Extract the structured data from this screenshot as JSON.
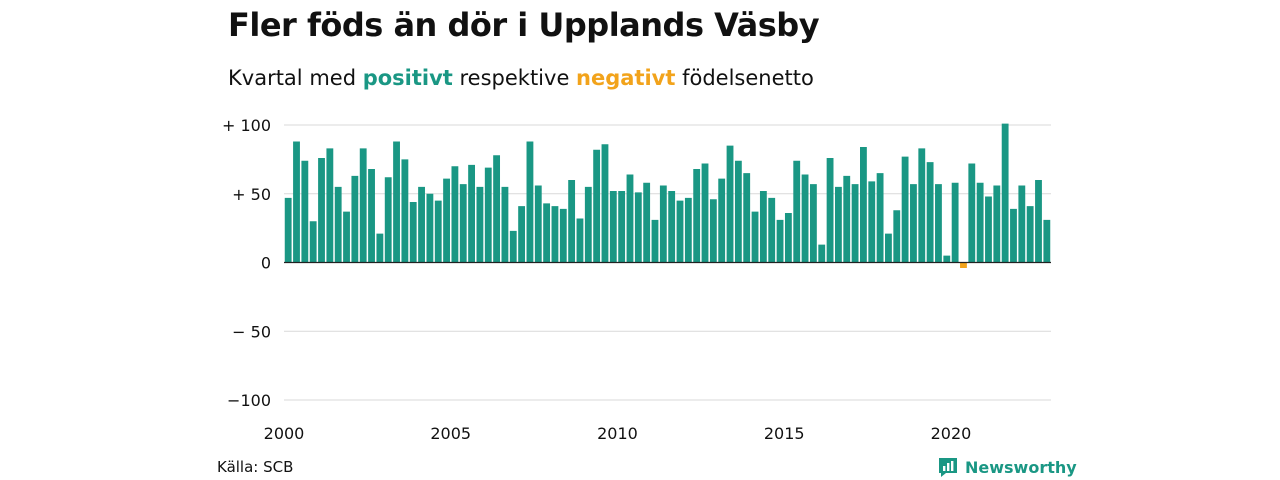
{
  "chart_data": {
    "type": "bar",
    "title": "Fler föds än dör i Upplands Väsby",
    "subtitle": {
      "prefix": "Kvartal med ",
      "positive": "positivt",
      "middle": " respektive ",
      "negative": "negativt",
      "suffix": " födelsenetto"
    },
    "xlabel": "",
    "ylabel": "",
    "ylim": [
      -100,
      100
    ],
    "yticks": [
      {
        "value": 100,
        "label": "+ 100"
      },
      {
        "value": 50,
        "label": "+  50"
      },
      {
        "value": 0,
        "label": "0"
      },
      {
        "value": -50,
        "label": "− 50"
      },
      {
        "value": -100,
        "label": "−100"
      }
    ],
    "xticks": [
      "2000",
      "2005",
      "2010",
      "2015",
      "2020"
    ],
    "x_start_year": 2000,
    "values": [
      47,
      88,
      74,
      30,
      76,
      83,
      55,
      37,
      63,
      83,
      68,
      21,
      62,
      88,
      75,
      44,
      55,
      50,
      45,
      61,
      70,
      57,
      71,
      55,
      69,
      78,
      55,
      23,
      41,
      88,
      56,
      43,
      41,
      39,
      60,
      32,
      55,
      82,
      86,
      52,
      52,
      64,
      51,
      58,
      31,
      56,
      52,
      45,
      47,
      68,
      72,
      46,
      61,
      85,
      74,
      65,
      37,
      52,
      47,
      31,
      36,
      74,
      64,
      57,
      13,
      76,
      55,
      63,
      57,
      84,
      59,
      65,
      21,
      38,
      77,
      57,
      83,
      73,
      57,
      5,
      58,
      -4,
      72,
      58,
      48,
      56,
      101,
      39,
      56,
      41,
      60,
      31
    ],
    "colors": {
      "positive": "#1a9784",
      "negative": "#f2a31b",
      "grid": "#d9d9d9",
      "zero": "#222222"
    },
    "grid": true
  },
  "footer": {
    "source": "Källa: SCB",
    "brand": "Newsworthy"
  }
}
